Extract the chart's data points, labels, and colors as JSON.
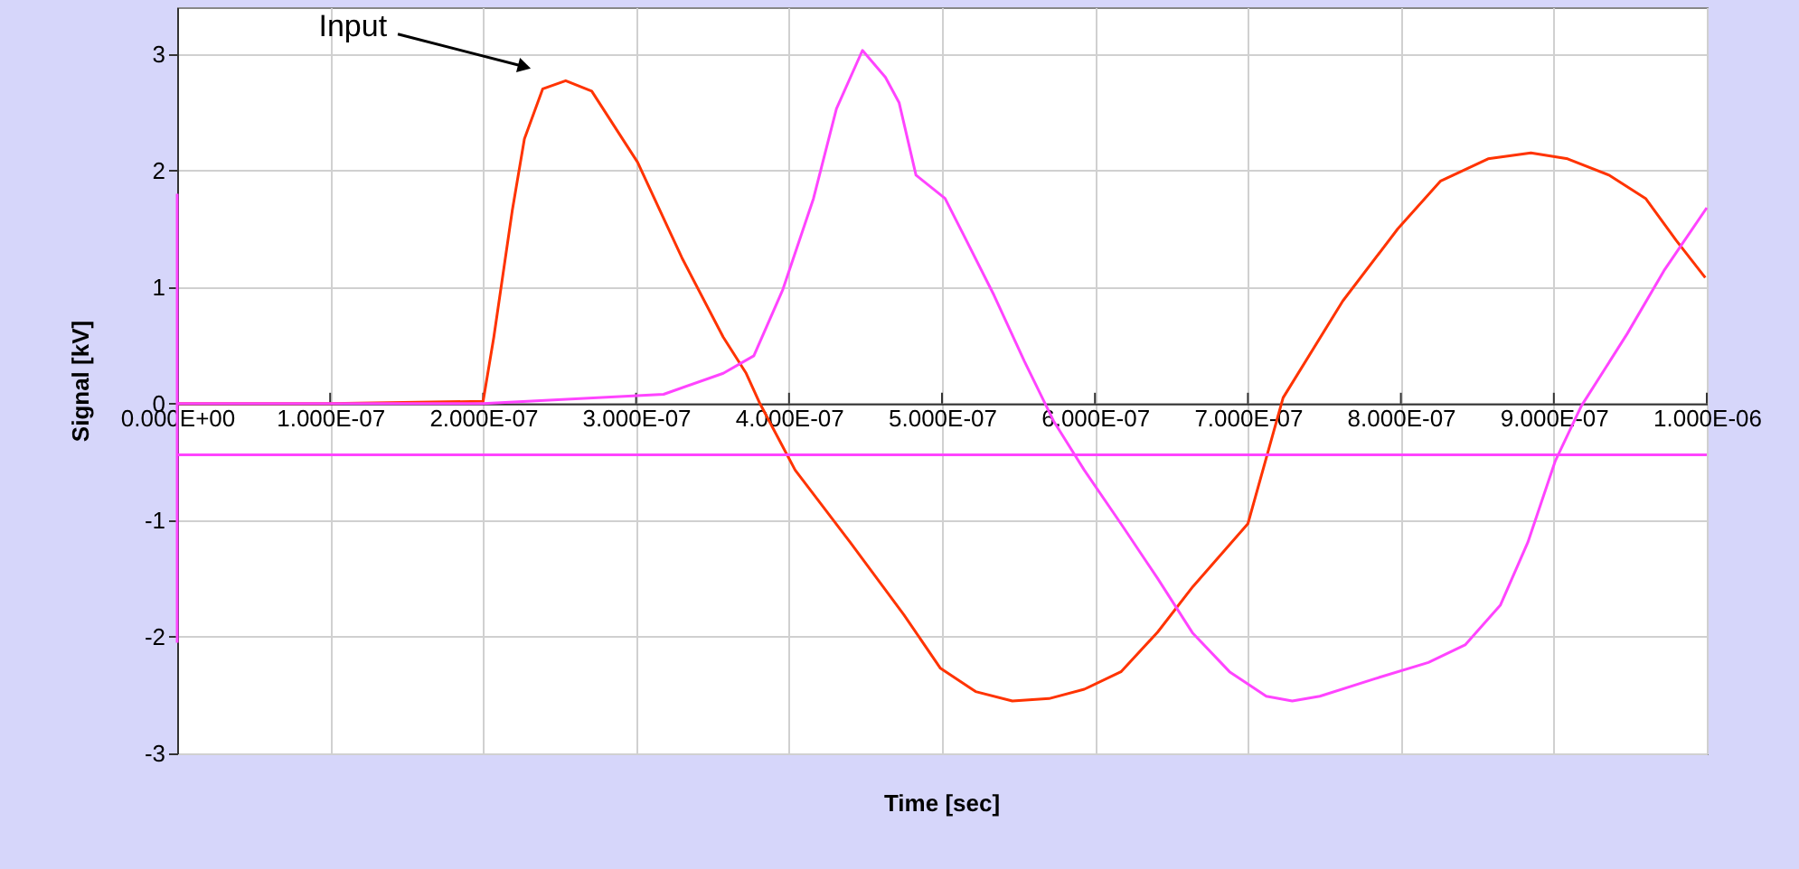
{
  "chart_data": {
    "type": "line",
    "xlabel": "Time [sec]",
    "ylabel": "Signal [kV]",
    "xlim": [
      0,
      1e-06
    ],
    "ylim": [
      -3,
      3.4
    ],
    "xticks": [
      {
        "value": 0,
        "label": "0.000E+00"
      },
      {
        "value": 1e-07,
        "label": "1.000E-07"
      },
      {
        "value": 2e-07,
        "label": "2.000E-07"
      },
      {
        "value": 3e-07,
        "label": "3.000E-07"
      },
      {
        "value": 4e-07,
        "label": "4.000E-07"
      },
      {
        "value": 5e-07,
        "label": "5.000E-07"
      },
      {
        "value": 6e-07,
        "label": "6.000E-07"
      },
      {
        "value": 7e-07,
        "label": "7.000E-07"
      },
      {
        "value": 8e-07,
        "label": "8.000E-07"
      },
      {
        "value": 9e-07,
        "label": "9.000E-07"
      },
      {
        "value": 1e-06,
        "label": "1.000E-06"
      }
    ],
    "yticks": [
      -3,
      -2,
      -1,
      0,
      1,
      2,
      3
    ],
    "grid": true,
    "marker": "none",
    "line_style": "solid",
    "annotations": [
      {
        "text": "Input",
        "x": 2.27e-07,
        "y": 2.89
      }
    ],
    "series": [
      {
        "color": "#ff3300",
        "x": [
          0,
          1e-07,
          2e-07,
          2.07e-07,
          2.19e-07,
          2.27e-07,
          2.39e-07,
          2.54e-07,
          2.71e-07,
          3.01e-07,
          3.3e-07,
          3.57e-07,
          3.72e-07,
          3.81e-07,
          4.04e-07,
          4.4e-07,
          4.75e-07,
          4.99e-07,
          5.22e-07,
          5.46e-07,
          5.7e-07,
          5.93e-07,
          6.17e-07,
          6.41e-07,
          6.64e-07,
          7e-07,
          7.23e-07,
          7.62e-07,
          7.98e-07,
          8.26e-07,
          8.57e-07,
          8.85e-07,
          9.09e-07,
          9.36e-07,
          9.6e-07,
          9.8e-07,
          9.99e-07
        ],
        "values": [
          0,
          0,
          0.02,
          0.57,
          1.65,
          2.27,
          2.7,
          2.77,
          2.68,
          2.07,
          1.25,
          0.57,
          0.26,
          0,
          -0.57,
          -1.19,
          -1.81,
          -2.27,
          -2.47,
          -2.55,
          -2.53,
          -2.45,
          -2.3,
          -1.96,
          -1.57,
          -1.03,
          0.05,
          0.88,
          1.5,
          1.91,
          2.1,
          2.15,
          2.1,
          1.96,
          1.76,
          1.4,
          1.08
        ]
      },
      {
        "color": "#ff44ff",
        "x": [
          0,
          1e-07,
          2e-07,
          3.18e-07,
          3.57e-07,
          3.77e-07,
          3.96e-07,
          4.16e-07,
          4.31e-07,
          4.48e-07,
          4.63e-07,
          4.72e-07,
          4.83e-07,
          5.02e-07,
          5.14e-07,
          5.34e-07,
          5.54e-07,
          5.73e-07,
          5.93e-07,
          6.17e-07,
          6.41e-07,
          6.64e-07,
          6.88e-07,
          7.12e-07,
          7.29e-07,
          7.47e-07,
          7.83e-07,
          8.18e-07,
          8.42e-07,
          8.65e-07,
          8.83e-07,
          9.01e-07,
          9.18e-07,
          9.48e-07,
          9.72e-07,
          1e-06
        ],
        "values": [
          0,
          0,
          0,
          0.08,
          0.26,
          0.41,
          0.98,
          1.76,
          2.53,
          3.03,
          2.8,
          2.58,
          1.96,
          1.76,
          1.45,
          0.93,
          0.36,
          -0.15,
          -0.57,
          -1.03,
          -1.5,
          -1.97,
          -2.3,
          -2.51,
          -2.55,
          -2.51,
          -2.36,
          -2.22,
          -2.07,
          -1.73,
          -1.19,
          -0.49,
          -0.02,
          0.6,
          1.14,
          1.68
        ]
      },
      {
        "color": "#ff44ff",
        "x": [
          0,
          0
        ],
        "values": [
          1.8,
          -2.05
        ]
      },
      {
        "color": "#ff44ff",
        "x": [
          0,
          1e-06
        ],
        "values": [
          -0.44,
          -0.44
        ]
      }
    ]
  }
}
